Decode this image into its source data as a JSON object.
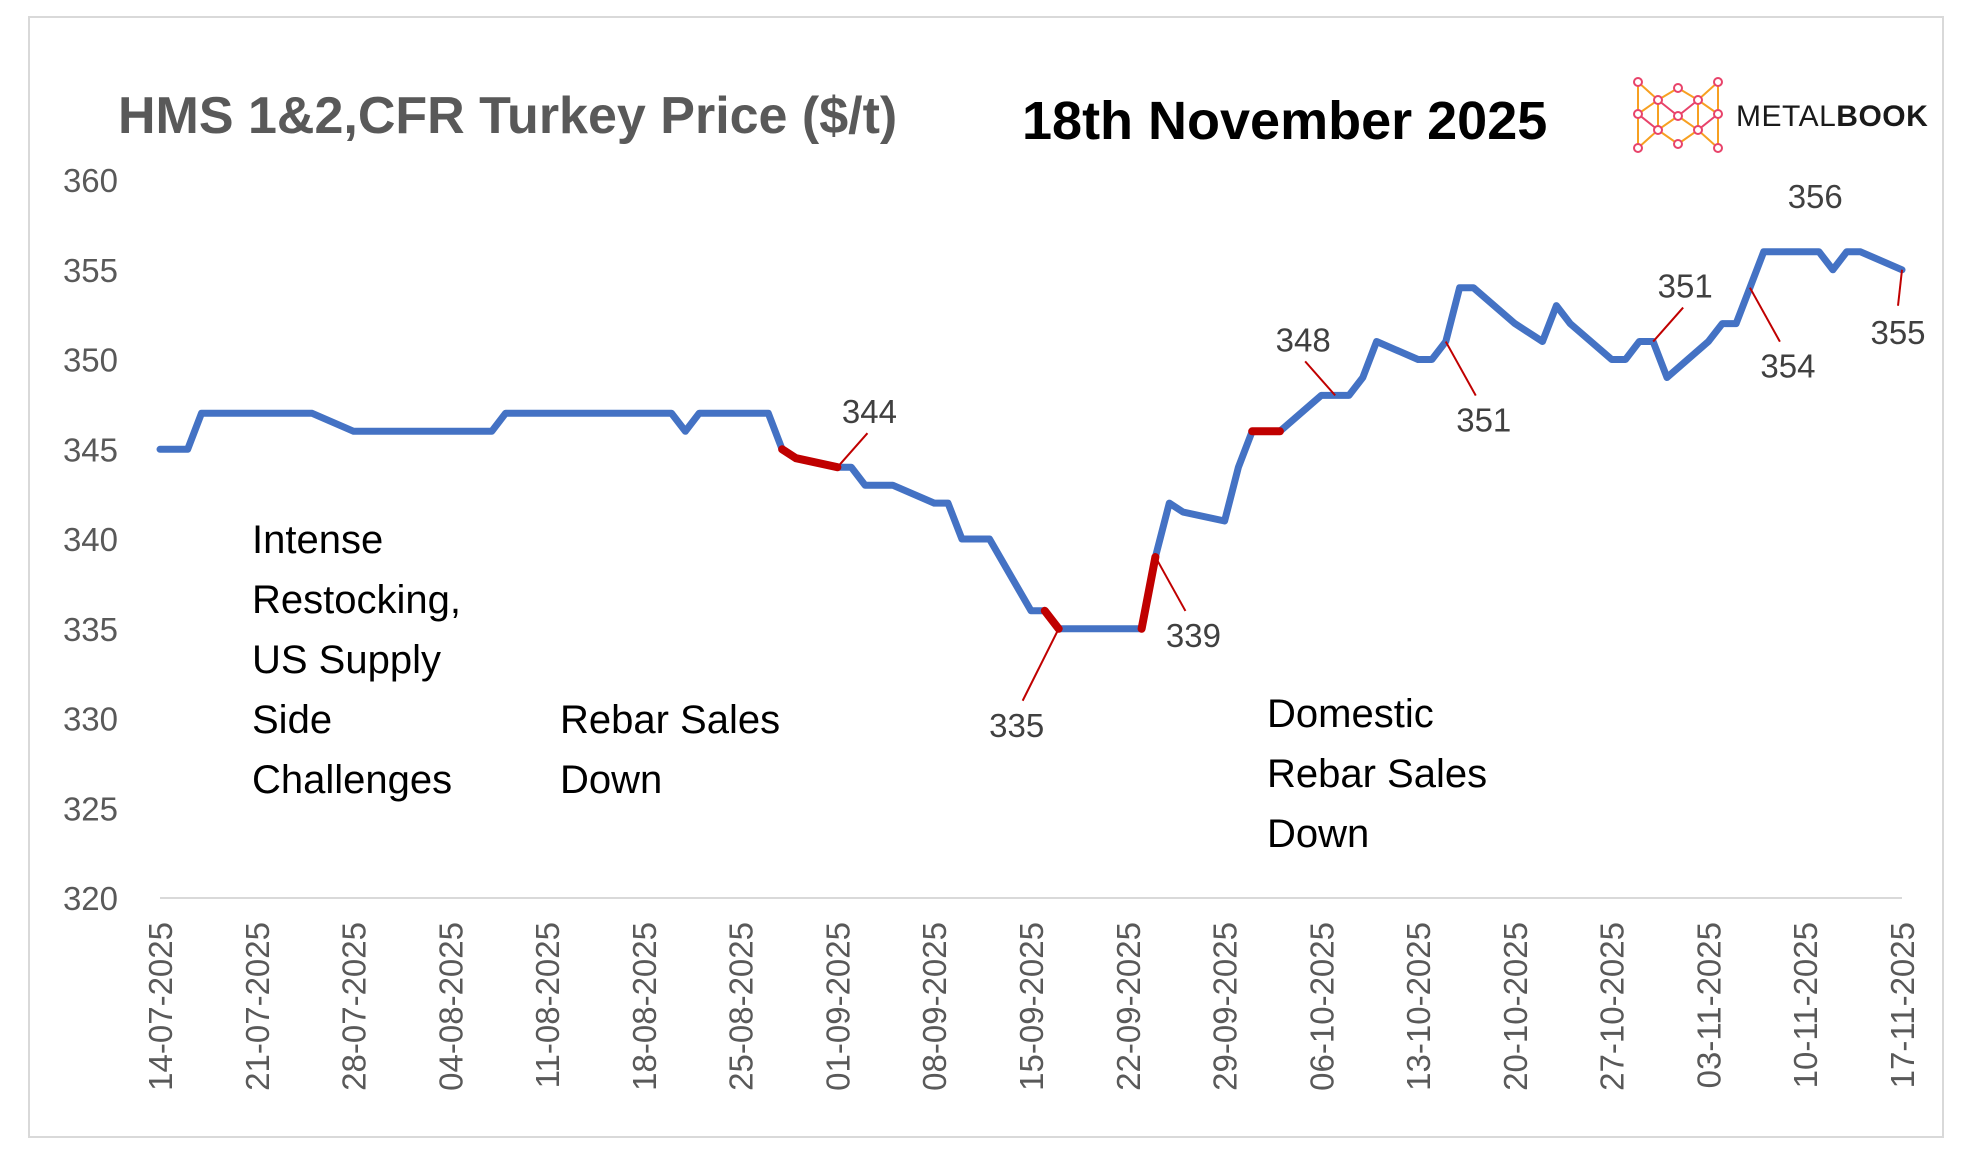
{
  "title": "HMS 1&2,CFR Turkey Price ($/t)",
  "date_label": "18th November 2025",
  "brand": {
    "name_light": "METAL",
    "name_bold": "BOOK"
  },
  "annotations": {
    "restocking": "Intense\nRestocking,\nUS Supply\nSide\nChallenges",
    "rebar_sales": "Rebar Sales\nDown",
    "domestic_rebar": "Domestic\nRebar Sales\nDown"
  },
  "chart_data": {
    "type": "line",
    "title": "HMS 1&2,CFR Turkey Price ($/t)",
    "xlabel": "",
    "ylabel": "",
    "ylim": [
      320,
      360
    ],
    "yticks": [
      320,
      325,
      330,
      335,
      340,
      345,
      350,
      355,
      360
    ],
    "xlim": [
      "14-07-2025",
      "17-11-2025"
    ],
    "xticks": [
      "14-07-2025",
      "21-07-2025",
      "28-07-2025",
      "04-08-2025",
      "11-08-2025",
      "18-08-2025",
      "25-08-2025",
      "01-09-2025",
      "08-09-2025",
      "15-09-2025",
      "22-09-2025",
      "29-09-2025",
      "06-10-2025",
      "13-10-2025",
      "20-10-2025",
      "27-10-2025",
      "03-11-2025",
      "10-11-2025",
      "17-11-2025"
    ],
    "grid": false,
    "legend": "none",
    "series_color": "#4472C4",
    "highlight_color": "#C00000",
    "points": [
      [
        "14-07-2025",
        345
      ],
      [
        "15-07-2025",
        345
      ],
      [
        "16-07-2025",
        345
      ],
      [
        "17-07-2025",
        347
      ],
      [
        "18-07-2025",
        347
      ],
      [
        "21-07-2025",
        347
      ],
      [
        "22-07-2025",
        347
      ],
      [
        "23-07-2025",
        347
      ],
      [
        "24-07-2025",
        347
      ],
      [
        "25-07-2025",
        347
      ],
      [
        "28-07-2025",
        346
      ],
      [
        "29-07-2025",
        346
      ],
      [
        "30-07-2025",
        346
      ],
      [
        "31-07-2025",
        346
      ],
      [
        "01-08-2025",
        346
      ],
      [
        "04-08-2025",
        346
      ],
      [
        "05-08-2025",
        346
      ],
      [
        "06-08-2025",
        346
      ],
      [
        "07-08-2025",
        346
      ],
      [
        "08-08-2025",
        347
      ],
      [
        "11-08-2025",
        347
      ],
      [
        "12-08-2025",
        347
      ],
      [
        "13-08-2025",
        347
      ],
      [
        "14-08-2025",
        347
      ],
      [
        "15-08-2025",
        347
      ],
      [
        "18-08-2025",
        347
      ],
      [
        "19-08-2025",
        347
      ],
      [
        "20-08-2025",
        347
      ],
      [
        "21-08-2025",
        346
      ],
      [
        "22-08-2025",
        347
      ],
      [
        "25-08-2025",
        347
      ],
      [
        "26-08-2025",
        347
      ],
      [
        "27-08-2025",
        347
      ],
      [
        "28-08-2025",
        345
      ],
      [
        "29-08-2025",
        344.5
      ],
      [
        "01-09-2025",
        344
      ],
      [
        "02-09-2025",
        344
      ],
      [
        "03-09-2025",
        343
      ],
      [
        "04-09-2025",
        343
      ],
      [
        "05-09-2025",
        343
      ],
      [
        "08-09-2025",
        342
      ],
      [
        "09-09-2025",
        342
      ],
      [
        "10-09-2025",
        340
      ],
      [
        "11-09-2025",
        340
      ],
      [
        "12-09-2025",
        340
      ],
      [
        "15-09-2025",
        336
      ],
      [
        "16-09-2025",
        336
      ],
      [
        "17-09-2025",
        335
      ],
      [
        "18-09-2025",
        335
      ],
      [
        "19-09-2025",
        335
      ],
      [
        "22-09-2025",
        335
      ],
      [
        "23-09-2025",
        335
      ],
      [
        "24-09-2025",
        339
      ],
      [
        "25-09-2025",
        342
      ],
      [
        "26-09-2025",
        341.5
      ],
      [
        "29-09-2025",
        341
      ],
      [
        "30-09-2025",
        344
      ],
      [
        "01-10-2025",
        346
      ],
      [
        "02-10-2025",
        346
      ],
      [
        "03-10-2025",
        346
      ],
      [
        "06-10-2025",
        348
      ],
      [
        "07-10-2025",
        348
      ],
      [
        "08-10-2025",
        348
      ],
      [
        "09-10-2025",
        349
      ],
      [
        "10-10-2025",
        351
      ],
      [
        "13-10-2025",
        350
      ],
      [
        "14-10-2025",
        350
      ],
      [
        "15-10-2025",
        351
      ],
      [
        "16-10-2025",
        354
      ],
      [
        "17-10-2025",
        354
      ],
      [
        "20-10-2025",
        352
      ],
      [
        "21-10-2025",
        351.5
      ],
      [
        "22-10-2025",
        351
      ],
      [
        "23-10-2025",
        353
      ],
      [
        "24-10-2025",
        352
      ],
      [
        "27-10-2025",
        350
      ],
      [
        "28-10-2025",
        350
      ],
      [
        "29-10-2025",
        351
      ],
      [
        "30-10-2025",
        351
      ],
      [
        "31-10-2025",
        349
      ],
      [
        "03-11-2025",
        351
      ],
      [
        "04-11-2025",
        352
      ],
      [
        "05-11-2025",
        352
      ],
      [
        "06-11-2025",
        354
      ],
      [
        "07-11-2025",
        356
      ],
      [
        "10-11-2025",
        356
      ],
      [
        "11-11-2025",
        356
      ],
      [
        "12-11-2025",
        355
      ],
      [
        "13-11-2025",
        356
      ],
      [
        "14-11-2025",
        356
      ],
      [
        "17-11-2025",
        355
      ]
    ],
    "highlight_segments": [
      [
        "28-08-2025",
        "01-09-2025"
      ],
      [
        "16-09-2025",
        "17-09-2025"
      ],
      [
        "23-09-2025",
        "24-09-2025"
      ],
      [
        "01-10-2025",
        "03-10-2025"
      ]
    ],
    "data_labels": [
      {
        "date": "01-09-2025",
        "value": 344,
        "text": "344",
        "pos": "upper-right"
      },
      {
        "date": "17-09-2025",
        "value": 335,
        "text": "335",
        "pos": "lower-left"
      },
      {
        "date": "24-09-2025",
        "value": 339,
        "text": "339",
        "pos": "lower-right"
      },
      {
        "date": "07-10-2025",
        "value": 348,
        "text": "348",
        "pos": "upper-left"
      },
      {
        "date": "15-10-2025",
        "value": 351,
        "text": "351",
        "pos": "lower-right"
      },
      {
        "date": "30-10-2025",
        "value": 351,
        "text": "351",
        "pos": "upper-right"
      },
      {
        "date": "06-11-2025",
        "value": 354,
        "text": "354",
        "pos": "lower-right"
      },
      {
        "date": "10-11-2025",
        "value": 356,
        "text": "356",
        "pos": "above"
      },
      {
        "date": "17-11-2025",
        "value": 355,
        "text": "355",
        "pos": "below"
      }
    ]
  }
}
